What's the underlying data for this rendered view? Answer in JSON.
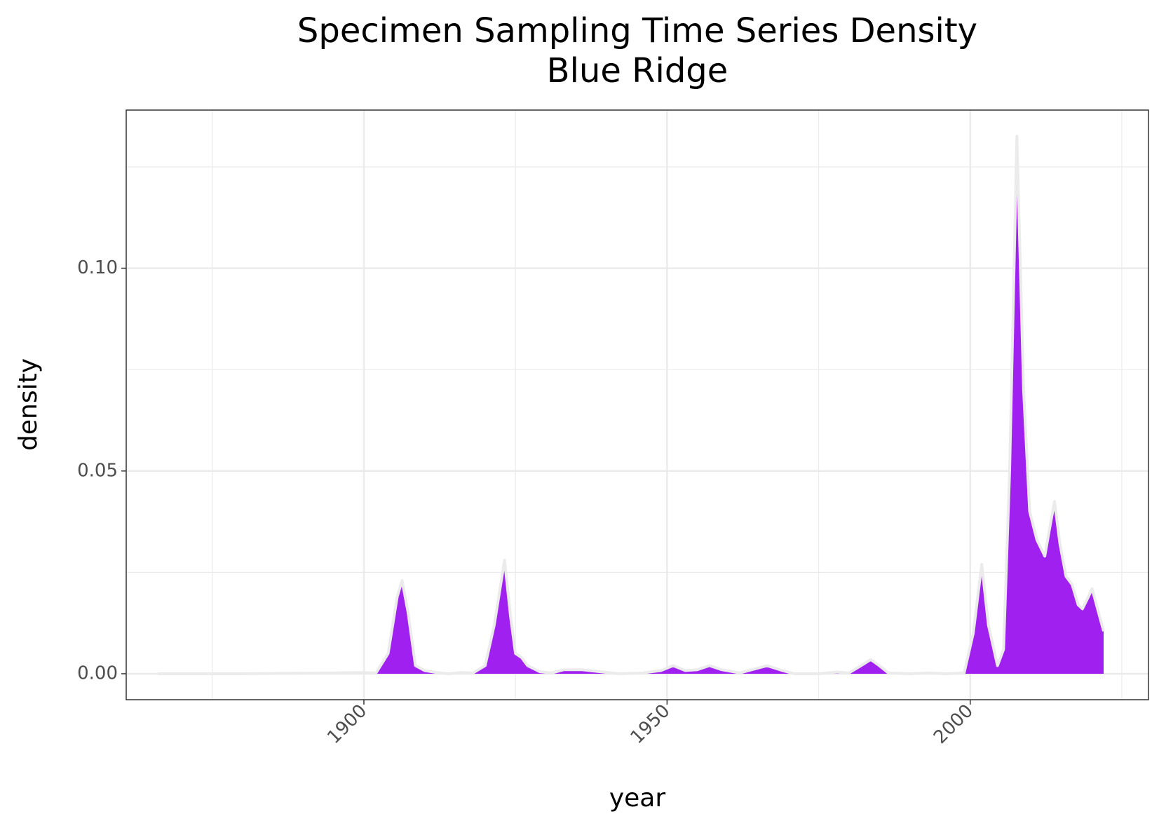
{
  "chart_data": {
    "type": "area",
    "title": "Specimen Sampling Time Series Density",
    "subtitle": "Blue Ridge",
    "x_label": "year",
    "y_label": "density",
    "fill_color": "#a020f0",
    "outline_color": "#ebebeb",
    "grid": true,
    "xlim": [
      1860.8,
      2029.4
    ],
    "ylim": [
      -0.0064,
      0.139
    ],
    "xticks": [
      1900,
      1950,
      2000
    ],
    "yticks": [
      {
        "value": 0,
        "label": "0.00"
      },
      {
        "value": 0.05,
        "label": "0.05"
      },
      {
        "value": 0.1,
        "label": "0.10"
      }
    ],
    "x": [
      1866,
      1880,
      1895,
      1899,
      1902,
      1904,
      1905.5,
      1906.3,
      1907.3,
      1908.5,
      1910,
      1912,
      1914,
      1916,
      1918,
      1920,
      1921.5,
      1923.2,
      1924.2,
      1925,
      1926,
      1927,
      1929,
      1931,
      1933,
      1936,
      1939,
      1942,
      1946,
      1949,
      1951,
      1953,
      1955,
      1957,
      1959,
      1962,
      1964,
      1966.5,
      1969,
      1971,
      1975,
      1978,
      1980,
      1982,
      1983.6,
      1985,
      1986.5,
      1990,
      1993,
      1996,
      1999,
      2000.5,
      2001.9,
      2003,
      2004.5,
      2005.5,
      2006.5,
      2007.7,
      2008.8,
      2009.8,
      2011,
      2012.3,
      2013,
      2013.9,
      2014.8,
      2015.8,
      2016.8,
      2017.8,
      2018.5,
      2019.5,
      2020.1,
      2021,
      2022
    ],
    "values": [
      0,
      0,
      0.0002,
      0.0003,
      0.0002,
      0.005,
      0.019,
      0.023,
      0.015,
      0.002,
      0.0008,
      0.0003,
      0,
      0.0003,
      0.0002,
      0.002,
      0.012,
      0.028,
      0.014,
      0.005,
      0.004,
      0.002,
      0.0005,
      0.0002,
      0.001,
      0.001,
      0.0005,
      0,
      0.0002,
      0.0008,
      0.002,
      0.0008,
      0.001,
      0.002,
      0.001,
      0.0002,
      0.001,
      0.002,
      0.0008,
      0,
      0,
      0.0004,
      0.0002,
      0.002,
      0.0035,
      0.002,
      0.0002,
      0,
      0.0002,
      0,
      0.0002,
      0.01,
      0.027,
      0.012,
      0.002,
      0.006,
      0.05,
      0.1326,
      0.07,
      0.04,
      0.033,
      0.029,
      0.035,
      0.0425,
      0.032,
      0.024,
      0.022,
      0.017,
      0.016,
      0.019,
      0.021,
      0.016,
      0.0105
    ]
  }
}
